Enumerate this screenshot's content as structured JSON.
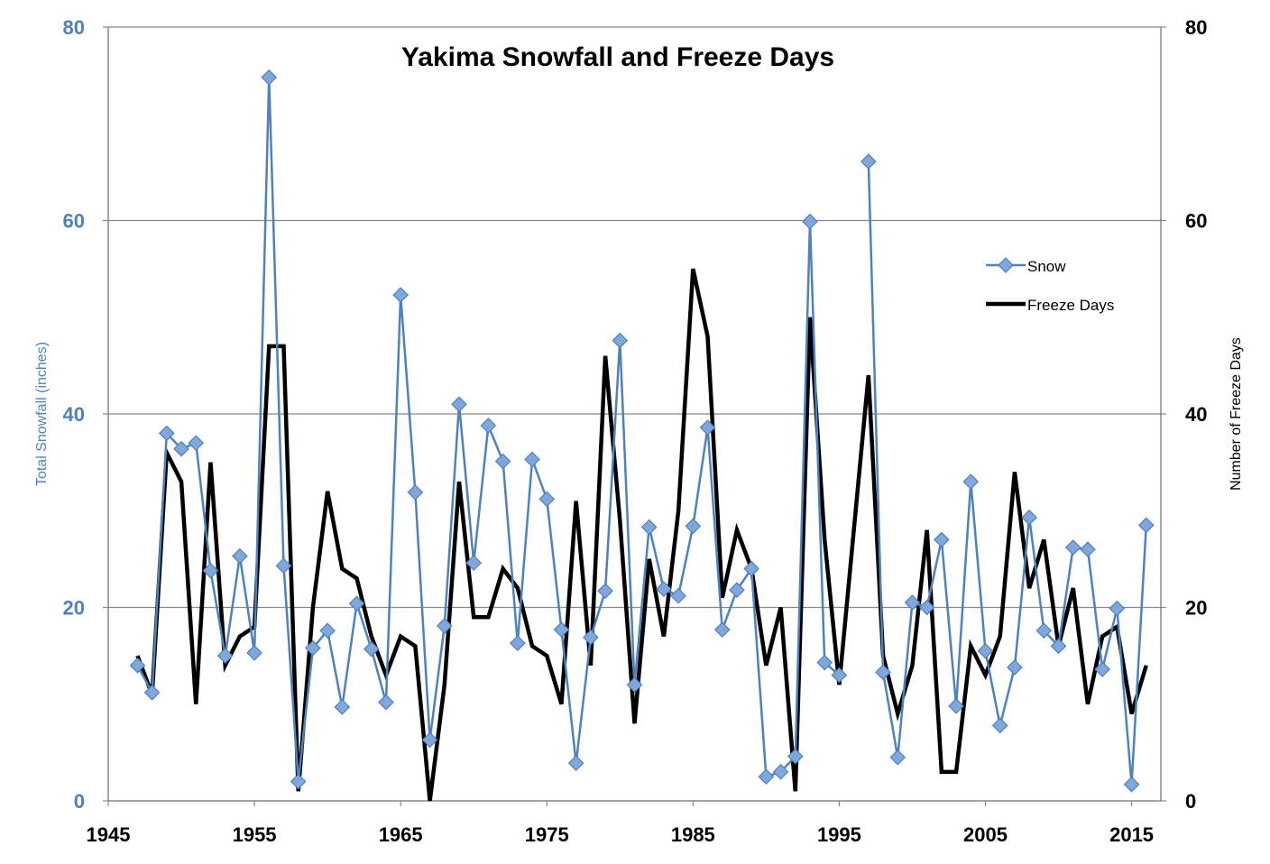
{
  "chart_data": {
    "type": "line",
    "title": "Yakima Snowfall and Freeze Days",
    "xlabel": "",
    "ylabel": "Total Snowfall (inches)",
    "y2label": "Number of Freeze Days",
    "xlim": [
      1945,
      2017
    ],
    "ylim": [
      0,
      80
    ],
    "y2lim": [
      0,
      80
    ],
    "x_ticks": [
      "1945",
      "1955",
      "1965",
      "1975",
      "1985",
      "1995",
      "2005",
      "2015"
    ],
    "y_ticks": [
      "0",
      "20",
      "40",
      "60",
      "80"
    ],
    "y2_ticks": [
      "0",
      "20",
      "40",
      "60",
      "80"
    ],
    "grid": "horizontal",
    "legend": "right",
    "colors": {
      "snow": "#4f81bd",
      "snow_marker": "#7fa7dc",
      "freeze": "#000000"
    },
    "x": [
      1947,
      1948,
      1949,
      1950,
      1951,
      1952,
      1953,
      1954,
      1955,
      1956,
      1957,
      1958,
      1959,
      1960,
      1961,
      1962,
      1963,
      1964,
      1965,
      1966,
      1967,
      1968,
      1969,
      1970,
      1971,
      1972,
      1973,
      1974,
      1975,
      1976,
      1977,
      1978,
      1979,
      1980,
      1981,
      1982,
      1983,
      1984,
      1985,
      1986,
      1987,
      1988,
      1989,
      1990,
      1991,
      1992,
      1993,
      1994,
      1995,
      1996,
      1997,
      1998,
      1999,
      2000,
      2001,
      2002,
      2003,
      2004,
      2005,
      2006,
      2007,
      2008,
      2009,
      2010,
      2011,
      2012,
      2013,
      2014,
      2015,
      2016
    ],
    "series": [
      {
        "name": "Snow",
        "axis": "left",
        "marker": "diamond",
        "values": [
          14,
          11.2,
          38,
          36.4,
          37,
          23.8,
          15,
          25.3,
          15.3,
          74.8,
          24.3,
          2,
          15.8,
          17.6,
          9.7,
          20.4,
          15.7,
          10.2,
          52.3,
          31.9,
          6.3,
          18.1,
          41,
          24.6,
          38.8,
          35.1,
          16.3,
          35.3,
          31.2,
          17.7,
          3.9,
          16.9,
          21.7,
          47.6,
          12,
          28.3,
          21.9,
          21.2,
          28.4,
          38.6,
          17.7,
          21.8,
          24,
          2.5,
          3,
          4.6,
          59.9,
          14.3,
          13,
          null,
          66.1,
          13.3,
          4.5,
          20.5,
          20,
          27,
          9.8,
          33,
          15.5,
          7.8,
          13.8,
          29.3,
          17.6,
          16,
          26.2,
          26,
          13.6,
          19.9,
          1.7,
          28.5
        ]
      },
      {
        "name": "Freeze Days",
        "axis": "right",
        "marker": "none",
        "values": [
          15,
          11,
          36,
          33,
          10,
          35,
          14,
          17,
          18,
          47,
          47,
          1,
          20,
          32,
          24,
          23,
          17,
          13,
          17,
          16,
          0,
          12,
          33,
          19,
          19,
          24,
          22,
          16,
          15,
          10,
          31,
          14,
          46,
          29,
          8,
          25,
          17,
          30,
          55,
          48,
          21,
          28,
          24,
          14,
          20,
          1,
          50,
          27,
          12,
          28,
          44,
          15,
          9,
          14,
          28,
          3,
          3,
          16,
          13,
          17,
          34,
          22,
          27,
          16,
          22,
          10,
          17,
          18,
          9,
          14
        ]
      }
    ]
  }
}
